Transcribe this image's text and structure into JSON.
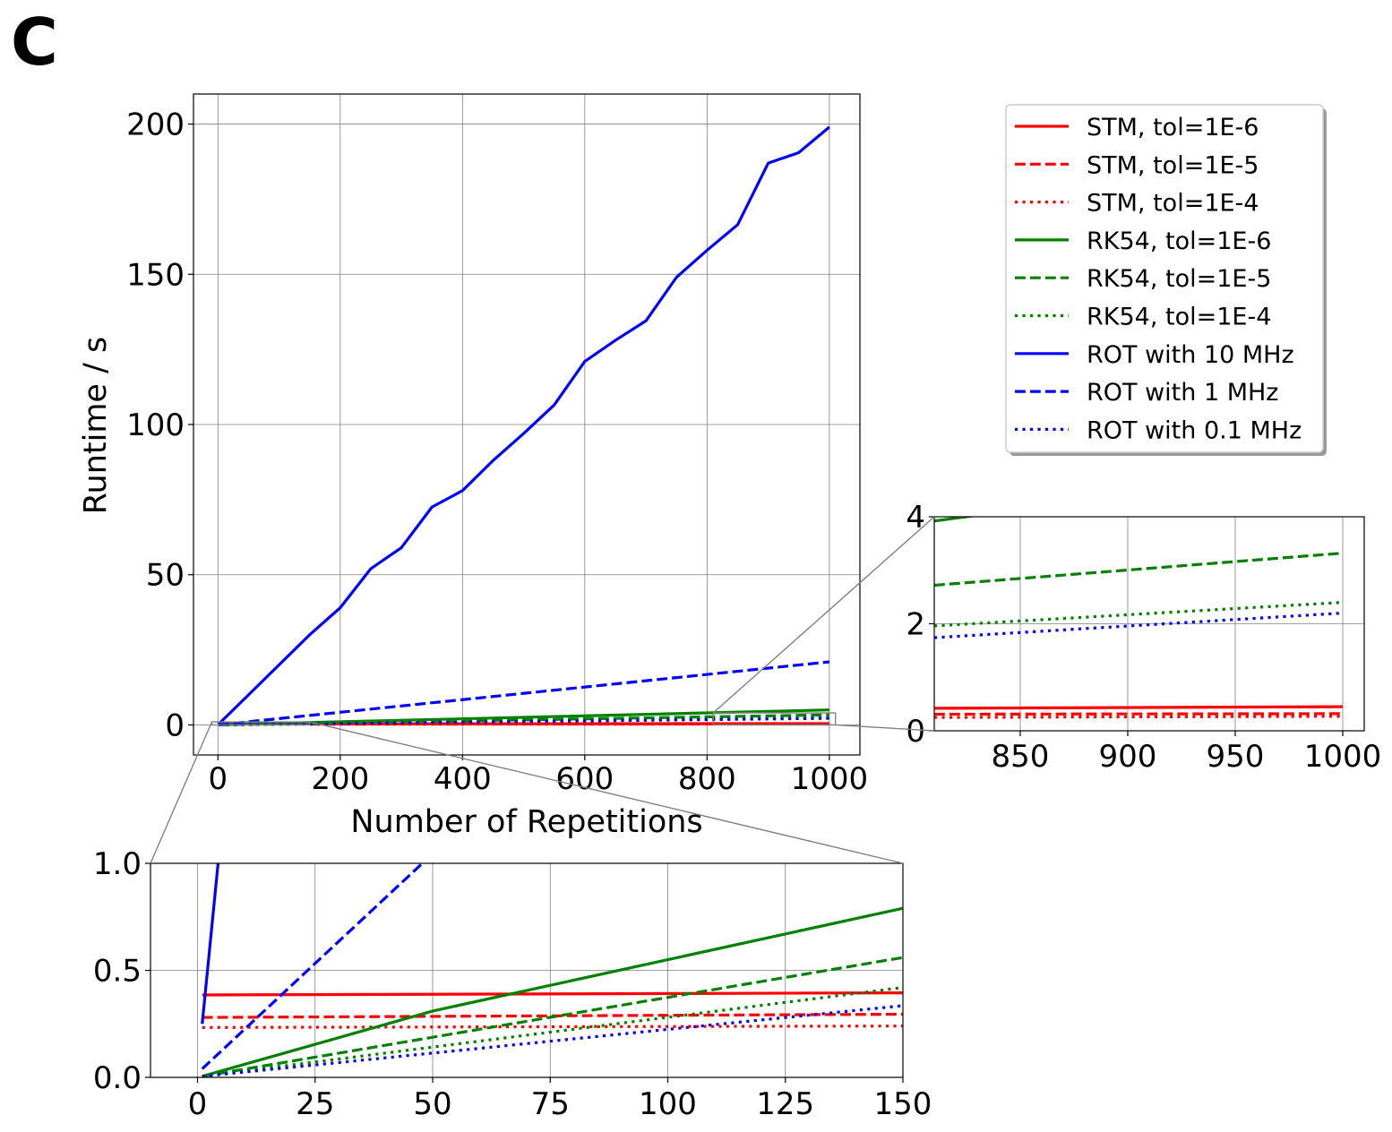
{
  "panel_label": "C",
  "colors": {
    "red": "#ff0000",
    "green": "#008000",
    "blue": "#0000ff",
    "grid": "#808080",
    "connector": "#808080"
  },
  "chart_data": [
    {
      "id": "main",
      "type": "line",
      "xlabel": "Number of Repetitions",
      "ylabel": "Runtime / s",
      "xlim": [
        -40,
        1050
      ],
      "ylim": [
        -10,
        210
      ],
      "xticks": [
        0,
        200,
        400,
        600,
        800,
        1000
      ],
      "xtick_labels": [
        "0",
        "200",
        "400",
        "600",
        "800",
        "1000"
      ],
      "yticks": [
        0,
        50,
        100,
        150,
        200
      ],
      "ytick_labels": [
        "0",
        "50",
        "100",
        "150",
        "200"
      ],
      "grid": true,
      "legend_position": "outside-right-top",
      "series": [
        {
          "name": "STM, tol=1E-6",
          "color": "#ff0000",
          "dash": "solid",
          "x": [
            1,
            1000
          ],
          "y": [
            0.38,
            0.45
          ]
        },
        {
          "name": "STM, tol=1E-5",
          "color": "#ff0000",
          "dash": "dashed",
          "x": [
            1,
            1000
          ],
          "y": [
            0.28,
            0.32
          ]
        },
        {
          "name": "STM, tol=1E-4",
          "color": "#ff0000",
          "dash": "dotted",
          "x": [
            1,
            1000
          ],
          "y": [
            0.23,
            0.27
          ]
        },
        {
          "name": "RK54, tol=1E-6",
          "color": "#008000",
          "dash": "solid",
          "x": [
            1,
            50,
            1000
          ],
          "y": [
            0.01,
            0.31,
            5.0
          ]
        },
        {
          "name": "RK54, tol=1E-5",
          "color": "#008000",
          "dash": "dashed",
          "x": [
            1,
            1000
          ],
          "y": [
            0.01,
            3.35
          ]
        },
        {
          "name": "RK54, tol=1E-4",
          "color": "#008000",
          "dash": "dotted",
          "x": [
            1,
            1000
          ],
          "y": [
            0.01,
            2.4
          ]
        },
        {
          "name": "ROT with 10 MHz",
          "color": "#0000ff",
          "dash": "solid",
          "x": [
            1,
            50,
            100,
            150,
            200,
            250,
            300,
            350,
            400,
            450,
            500,
            550,
            600,
            650,
            700,
            750,
            800,
            850,
            900,
            950,
            1000
          ],
          "y": [
            0.25,
            10,
            20,
            30,
            39,
            52,
            59,
            72.5,
            78,
            88,
            97,
            106.5,
            121,
            128,
            134.5,
            149,
            158,
            166.5,
            187,
            190.5,
            199
          ]
        },
        {
          "name": "ROT with 1 MHz",
          "color": "#0000ff",
          "dash": "dashed",
          "x": [
            1,
            1000
          ],
          "y": [
            0.04,
            21
          ]
        },
        {
          "name": "ROT with 0.1 MHz",
          "color": "#0000ff",
          "dash": "dotted",
          "x": [
            1,
            1000
          ],
          "y": [
            0.01,
            2.2
          ]
        }
      ]
    },
    {
      "id": "inset-right",
      "type": "line",
      "xlim": [
        810,
        1010
      ],
      "ylim": [
        0,
        4
      ],
      "xticks": [
        850,
        900,
        950,
        1000
      ],
      "xtick_labels": [
        "850",
        "900",
        "950",
        "1000"
      ],
      "yticks": [
        0,
        2,
        4
      ],
      "ytick_labels": [
        "0",
        "2",
        "4"
      ],
      "grid": true,
      "series": [
        {
          "color": "#ff0000",
          "dash": "solid",
          "x": [
            810,
            1000
          ],
          "y": [
            0.42,
            0.45
          ]
        },
        {
          "color": "#ff0000",
          "dash": "dashed",
          "x": [
            810,
            1000
          ],
          "y": [
            0.31,
            0.32
          ]
        },
        {
          "color": "#ff0000",
          "dash": "dotted",
          "x": [
            810,
            1000
          ],
          "y": [
            0.25,
            0.27
          ]
        },
        {
          "color": "#008000",
          "dash": "solid",
          "x": [
            810,
            1000
          ],
          "y": [
            3.92,
            4.95
          ]
        },
        {
          "color": "#008000",
          "dash": "dashed",
          "x": [
            810,
            1000
          ],
          "y": [
            2.72,
            3.32
          ]
        },
        {
          "color": "#008000",
          "dash": "dotted",
          "x": [
            810,
            1000
          ],
          "y": [
            1.96,
            2.4
          ]
        },
        {
          "color": "#0000ff",
          "dash": "dotted",
          "x": [
            810,
            1000
          ],
          "y": [
            1.74,
            2.2
          ]
        }
      ]
    },
    {
      "id": "inset-bottom",
      "type": "line",
      "xlim": [
        -10,
        150
      ],
      "ylim": [
        0,
        1.0
      ],
      "xticks": [
        0,
        25,
        50,
        75,
        100,
        125,
        150
      ],
      "xtick_labels": [
        "0",
        "25",
        "50",
        "75",
        "100",
        "125",
        "150"
      ],
      "yticks": [
        0,
        0.5,
        1.0
      ],
      "ytick_labels": [
        "0.0",
        "0.5",
        "1.0"
      ],
      "grid": true,
      "series": [
        {
          "color": "#ff0000",
          "dash": "solid",
          "x": [
            1,
            150
          ],
          "y": [
            0.385,
            0.395
          ]
        },
        {
          "color": "#ff0000",
          "dash": "dashed",
          "x": [
            1,
            150
          ],
          "y": [
            0.28,
            0.295
          ]
        },
        {
          "color": "#ff0000",
          "dash": "dotted",
          "x": [
            1,
            150
          ],
          "y": [
            0.233,
            0.24
          ]
        },
        {
          "color": "#008000",
          "dash": "solid",
          "x": [
            1,
            50,
            150
          ],
          "y": [
            0.005,
            0.31,
            0.79
          ]
        },
        {
          "color": "#008000",
          "dash": "dashed",
          "x": [
            1,
            150
          ],
          "y": [
            0.005,
            0.56
          ]
        },
        {
          "color": "#008000",
          "dash": "dotted",
          "x": [
            1,
            150
          ],
          "y": [
            0.005,
            0.42
          ]
        },
        {
          "color": "#0000ff",
          "dash": "solid",
          "x": [
            1,
            5.5
          ],
          "y": [
            0.25,
            1.25
          ]
        },
        {
          "color": "#0000ff",
          "dash": "dashed",
          "x": [
            1,
            60
          ],
          "y": [
            0.04,
            1.25
          ]
        },
        {
          "color": "#0000ff",
          "dash": "dotted",
          "x": [
            1,
            150
          ],
          "y": [
            0.005,
            0.335
          ]
        }
      ]
    }
  ]
}
